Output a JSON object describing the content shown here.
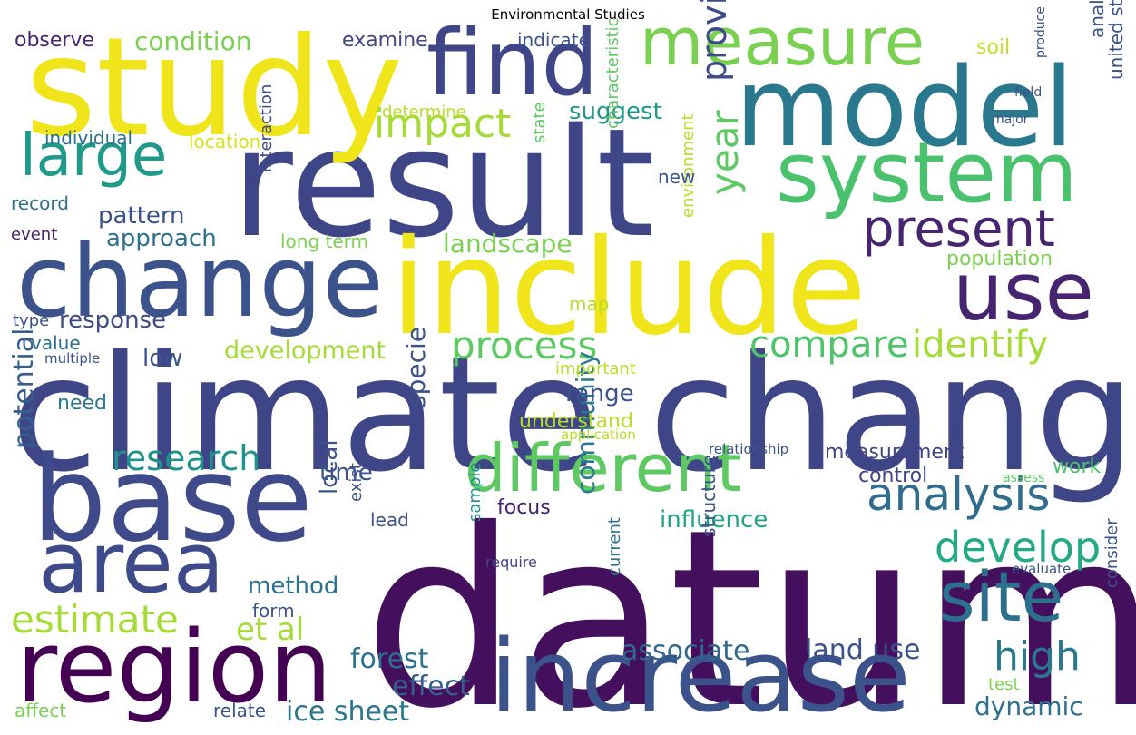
{
  "title": "Environmental Studies",
  "words": [
    {
      "text": "datum",
      "color": "#440f5c"
    },
    {
      "text": "climate change",
      "color": "#3f4688"
    },
    {
      "text": "result",
      "color": "#3f4688"
    },
    {
      "text": "include",
      "color": "#f0e51a"
    },
    {
      "text": "study",
      "color": "#f0e51a"
    },
    {
      "text": "model",
      "color": "#2a788e"
    },
    {
      "text": "base",
      "color": "#3e4a89"
    },
    {
      "text": "change",
      "color": "#3b528b"
    },
    {
      "text": "increase",
      "color": "#3b528b"
    },
    {
      "text": "region",
      "color": "#440154"
    },
    {
      "text": "find",
      "color": "#3f4688"
    },
    {
      "text": "system",
      "color": "#4ac16d"
    },
    {
      "text": "area",
      "color": "#3e4a89"
    },
    {
      "text": "different",
      "color": "#5ec962"
    },
    {
      "text": "measure",
      "color": "#7ad151"
    },
    {
      "text": "site",
      "color": "#2d708e"
    },
    {
      "text": "use",
      "color": "#46246f"
    },
    {
      "text": "large",
      "color": "#1f9a8a"
    },
    {
      "text": "present",
      "color": "#46246f"
    },
    {
      "text": "analysis",
      "color": "#2f6c8e"
    },
    {
      "text": "develop",
      "color": "#23a983"
    },
    {
      "text": "impact",
      "color": "#a5db36"
    },
    {
      "text": "process",
      "color": "#5ec962"
    },
    {
      "text": "compare",
      "color": "#4fc46a"
    },
    {
      "text": "identify",
      "color": "#a5db36"
    },
    {
      "text": "estimate",
      "color": "#a5db36"
    },
    {
      "text": "high",
      "color": "#2a788e"
    },
    {
      "text": "research",
      "color": "#20928c"
    },
    {
      "text": "year",
      "color": "#5ec962"
    },
    {
      "text": "provide",
      "color": "#3e4a89"
    },
    {
      "text": "et al",
      "color": "#a5db36"
    },
    {
      "text": "associate",
      "color": "#31688e"
    },
    {
      "text": "land use",
      "color": "#3b528b"
    },
    {
      "text": "ice sheet",
      "color": "#2a788e"
    },
    {
      "text": "effect",
      "color": "#355f8d"
    },
    {
      "text": "forest",
      "color": "#2c718e"
    },
    {
      "text": "dynamic",
      "color": "#2c718e"
    },
    {
      "text": "condition",
      "color": "#7ad151"
    },
    {
      "text": "suggest",
      "color": "#1f9a8a"
    },
    {
      "text": "landscape",
      "color": "#7ad151"
    },
    {
      "text": "development",
      "color": "#a5db36"
    },
    {
      "text": "response",
      "color": "#3e4a89"
    },
    {
      "text": "pattern",
      "color": "#3b528b"
    },
    {
      "text": "approach",
      "color": "#2c718e"
    },
    {
      "text": "influence",
      "color": "#20a386"
    },
    {
      "text": "method",
      "color": "#2c728e"
    },
    {
      "text": "community",
      "color": "#2a788e"
    },
    {
      "text": "potential",
      "color": "#355f8d"
    },
    {
      "text": "specie",
      "color": "#3b528b"
    },
    {
      "text": "local",
      "color": "#3b528b"
    },
    {
      "text": "time",
      "color": "#3b528b"
    },
    {
      "text": "range",
      "color": "#3b528b"
    },
    {
      "text": "low",
      "color": "#3b528b"
    },
    {
      "text": "focus",
      "color": "#46246f"
    },
    {
      "text": "control",
      "color": "#414487"
    },
    {
      "text": "measurement",
      "color": "#414487"
    },
    {
      "text": "work",
      "color": "#4ac16d"
    },
    {
      "text": "observe",
      "color": "#46246f"
    },
    {
      "text": "examine",
      "color": "#414487"
    },
    {
      "text": "indicate",
      "color": "#3b528b"
    },
    {
      "text": "soil",
      "color": "#c2df23"
    },
    {
      "text": "analyze",
      "color": "#3b528b"
    },
    {
      "text": "united state",
      "color": "#3b528b"
    },
    {
      "text": "field",
      "color": "#3b528b"
    },
    {
      "text": "produce",
      "color": "#3b528b"
    },
    {
      "text": "major",
      "color": "#3b528b"
    },
    {
      "text": "determine",
      "color": "#b8de29"
    },
    {
      "text": "individual",
      "color": "#2d708e"
    },
    {
      "text": "location",
      "color": "#d8e219"
    },
    {
      "text": "record",
      "color": "#2d708e"
    },
    {
      "text": "event",
      "color": "#46246f"
    },
    {
      "text": "interaction",
      "color": "#3e4a89"
    },
    {
      "text": "long term",
      "color": "#7ad151"
    },
    {
      "text": "state",
      "color": "#5ec962"
    },
    {
      "text": "characteristic",
      "color": "#5ec962"
    },
    {
      "text": "environment",
      "color": "#b8de29"
    },
    {
      "text": "new",
      "color": "#3b528b"
    },
    {
      "text": "population",
      "color": "#7ad151"
    },
    {
      "text": "map",
      "color": "#b8de29"
    },
    {
      "text": "type",
      "color": "#3b528b"
    },
    {
      "text": "value",
      "color": "#2c718e"
    },
    {
      "text": "multiple",
      "color": "#3b528b"
    },
    {
      "text": "important",
      "color": "#b8de29"
    },
    {
      "text": "need",
      "color": "#2a788e"
    },
    {
      "text": "understand",
      "color": "#b8de29"
    },
    {
      "text": "application",
      "color": "#b8de29"
    },
    {
      "text": "relationship",
      "color": "#3b528b"
    },
    {
      "text": "assess",
      "color": "#5ec962"
    },
    {
      "text": "exist",
      "color": "#3b528b"
    },
    {
      "text": "lead",
      "color": "#3b528b"
    },
    {
      "text": "sample",
      "color": "#20928c"
    },
    {
      "text": "require",
      "color": "#414487"
    },
    {
      "text": "form",
      "color": "#3b528b"
    },
    {
      "text": "current",
      "color": "#2c718e"
    },
    {
      "text": "structure",
      "color": "#3b528b"
    },
    {
      "text": "evaluate",
      "color": "#3b528b"
    },
    {
      "text": "consider",
      "color": "#3b528b"
    },
    {
      "text": "test",
      "color": "#7ad151"
    },
    {
      "text": "affect",
      "color": "#7ad151"
    },
    {
      "text": "relate",
      "color": "#3b528b"
    }
  ]
}
